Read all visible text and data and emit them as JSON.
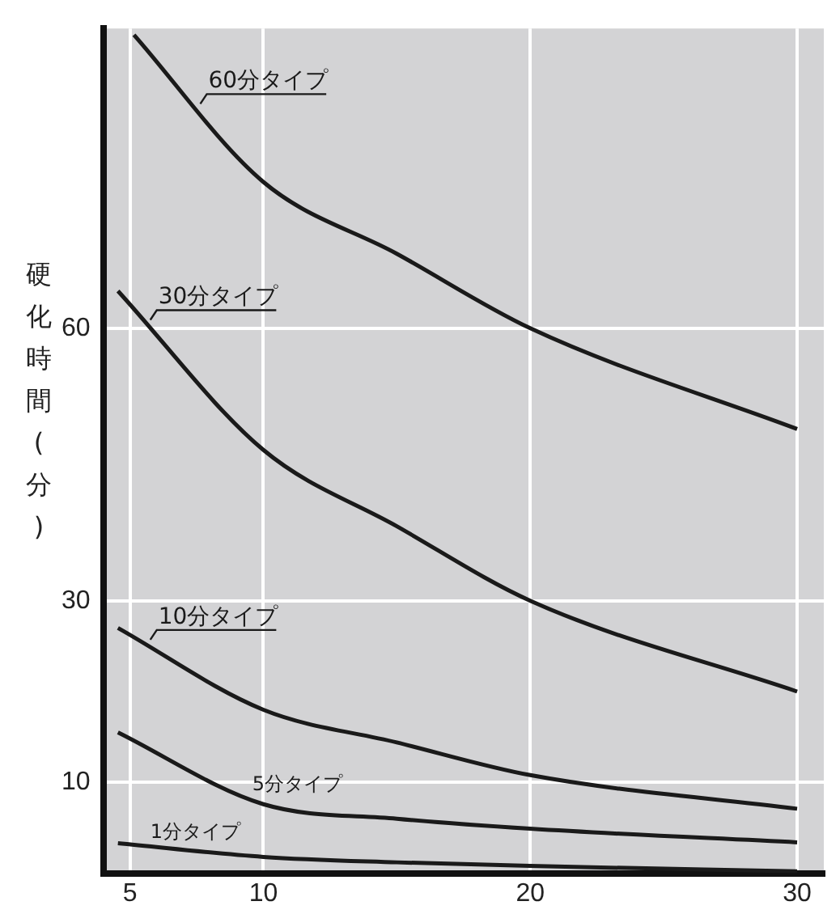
{
  "chart_data": {
    "type": "line",
    "ylabel": "硬化時間(分)",
    "x": [
      4.55,
      10,
      15,
      20,
      30
    ],
    "series": [
      {
        "name": "60分タイプ",
        "color": "#1a1a1a",
        "x": [
          5.15,
          10,
          15,
          20,
          30
        ],
        "values": [
          92.3,
          76.1,
          68.2,
          60,
          48.9
        ]
      },
      {
        "name": "30分タイプ",
        "color": "#1a1a1a",
        "values": [
          64.1,
          46.6,
          38.2,
          30,
          20
        ]
      },
      {
        "name": "10分タイプ",
        "color": "#1a1a1a",
        "values": [
          27,
          18,
          14.4,
          10.8,
          7.1
        ]
      },
      {
        "name": "5分タイプ",
        "color": "#1a1a1a",
        "values": [
          15.5,
          7.6,
          6,
          4.9,
          3.4
        ]
      },
      {
        "name": "1分タイプ",
        "color": "#1a1a1a",
        "values": [
          3.3,
          1.8,
          1.2,
          0.8,
          0.2
        ]
      }
    ],
    "xlim": [
      4,
      31
    ],
    "xticks": [
      5,
      10,
      20,
      30
    ],
    "ylim": [
      0,
      93
    ],
    "yticks": [
      10,
      30,
      60
    ],
    "grid": true,
    "legend": false,
    "marker": "none",
    "line_style": "solid"
  }
}
